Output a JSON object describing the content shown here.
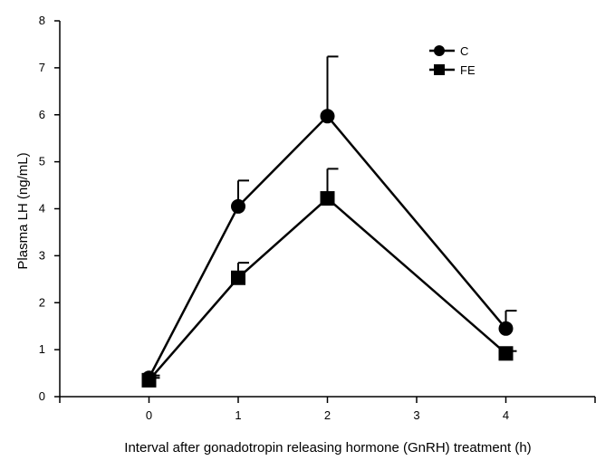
{
  "chart_data": {
    "type": "line",
    "title": "",
    "xlabel": "Interval after gonadotropin releasing hormone (GnRH) treatment (h)",
    "ylabel": "Plasma LH (ng/mL)",
    "x_ticks": [
      0,
      1,
      2,
      3,
      4
    ],
    "y_ticks": [
      0,
      1,
      2,
      3,
      4,
      5,
      6,
      7,
      8
    ],
    "xlim": [
      -1,
      5
    ],
    "ylim": [
      0,
      8
    ],
    "grid": false,
    "legend_position": "top-right",
    "error_bars": "upper only",
    "series": [
      {
        "name": "C",
        "marker": "circle",
        "color": "#000000",
        "x": [
          0,
          1,
          2,
          4
        ],
        "y": [
          0.4,
          4.05,
          5.97,
          1.45
        ],
        "error": [
          0.05,
          0.55,
          1.27,
          0.38
        ]
      },
      {
        "name": "FE",
        "marker": "square",
        "color": "#000000",
        "x": [
          0,
          1,
          2,
          4
        ],
        "y": [
          0.35,
          2.53,
          4.22,
          0.92
        ],
        "error": [
          0.05,
          0.32,
          0.63,
          0.05
        ]
      }
    ]
  }
}
